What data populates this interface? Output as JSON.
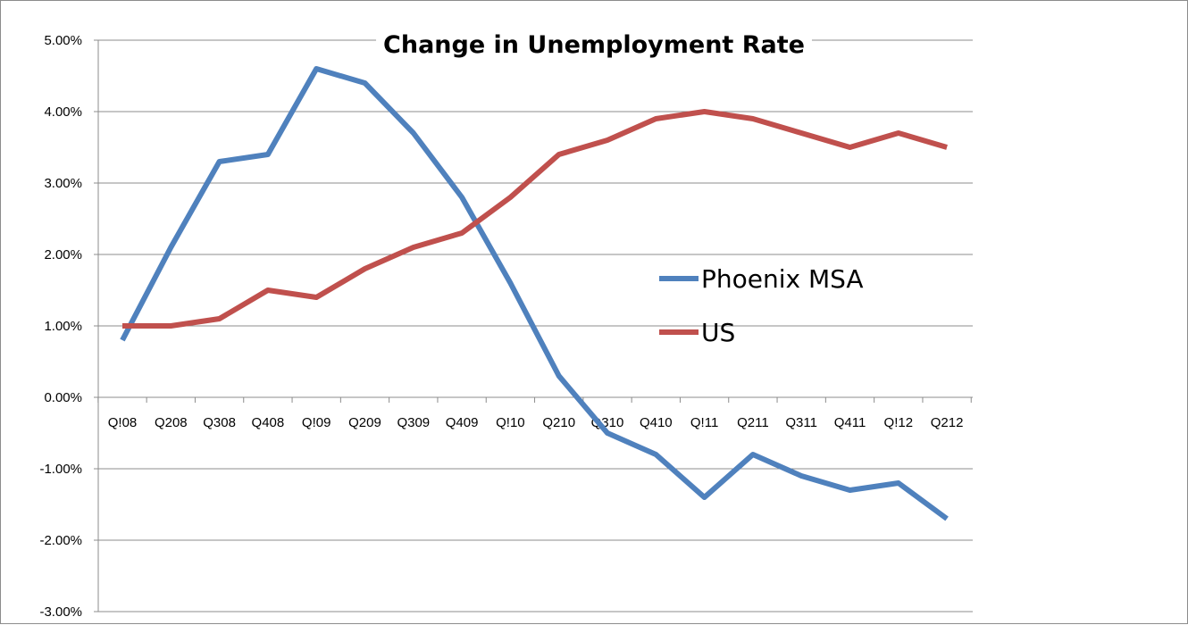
{
  "chart_data": {
    "type": "line",
    "title": "Change in Unemployment Rate",
    "xlabel": "",
    "ylabel": "",
    "categories": [
      "Q!08",
      "Q208",
      "Q308",
      "Q408",
      "Q!09",
      "Q209",
      "Q309",
      "Q409",
      "Q!10",
      "Q210",
      "Q310",
      "Q410",
      "Q!11",
      "Q211",
      "Q311",
      "Q411",
      "Q!12",
      "Q212"
    ],
    "ylim": [
      -3.0,
      5.0
    ],
    "yticks": [
      5.0,
      4.0,
      3.0,
      2.0,
      1.0,
      0.0,
      -1.0,
      -2.0,
      -3.0
    ],
    "ytick_labels": [
      "5.00%",
      "4.00%",
      "3.00%",
      "2.00%",
      "1.00%",
      "0.00%",
      "-1.00%",
      "-2.00%",
      "-3.00%"
    ],
    "grid": true,
    "legend_position": "right",
    "series": [
      {
        "name": "Phoenix MSA",
        "color": "#4f81bd",
        "values": [
          0.8,
          2.1,
          3.3,
          3.4,
          4.6,
          4.4,
          3.7,
          2.8,
          1.6,
          0.3,
          -0.5,
          -0.8,
          -1.4,
          -0.8,
          -1.1,
          -1.3,
          -1.2,
          -1.7
        ]
      },
      {
        "name": "US",
        "color": "#c0504d",
        "values": [
          1.0,
          1.0,
          1.1,
          1.5,
          1.4,
          1.8,
          2.1,
          2.3,
          2.8,
          3.4,
          3.6,
          3.9,
          4.0,
          3.9,
          3.7,
          3.5,
          3.7,
          3.5
        ]
      }
    ]
  }
}
